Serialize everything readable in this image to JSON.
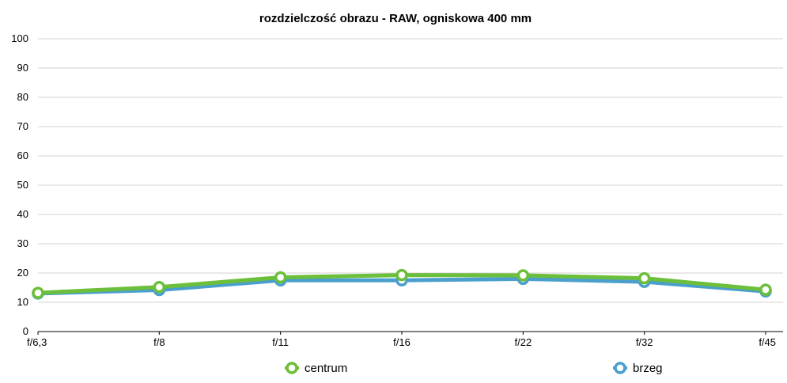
{
  "chart_data": {
    "type": "line",
    "title": "rozdzielczość obrazu - RAW, ogniskowa 400 mm",
    "categories": [
      "f/6,3",
      "f/8",
      "f/11",
      "f/16",
      "f/22",
      "f/32",
      "f/45"
    ],
    "ylim": [
      0,
      100
    ],
    "yticks": [
      0,
      10,
      20,
      30,
      40,
      50,
      60,
      70,
      80,
      90,
      100
    ],
    "grid": true,
    "legend_position": "bottom",
    "series": [
      {
        "name": "brzeg",
        "color": "#4a9fcc",
        "values": [
          13,
          14.2,
          17.5,
          17.5,
          18,
          17,
          13.7
        ]
      },
      {
        "name": "centrum",
        "color": "#6cbf3a",
        "values": [
          13.2,
          15.2,
          18.5,
          19.3,
          19.2,
          18.2,
          14.3
        ]
      }
    ],
    "legend_order": [
      "centrum",
      "brzeg"
    ]
  }
}
